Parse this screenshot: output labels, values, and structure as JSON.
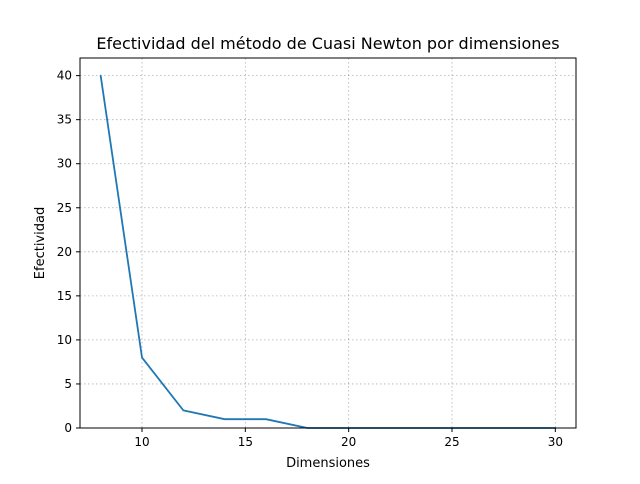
{
  "chart_data": {
    "type": "line",
    "title": "Efectividad del método de Cuasi Newton por dimensiones",
    "xlabel": "Dimensiones",
    "ylabel": "Efectividad",
    "xlim": [
      7,
      31
    ],
    "ylim": [
      0,
      42
    ],
    "x_ticks": [
      10,
      15,
      20,
      25,
      30
    ],
    "y_ticks": [
      0,
      5,
      10,
      15,
      20,
      25,
      30,
      35,
      40
    ],
    "grid": true,
    "legend": "none",
    "series": [
      {
        "color": "#1f77b4",
        "x": [
          8,
          10,
          12,
          14,
          16,
          18,
          20,
          22,
          24,
          26,
          28,
          30
        ],
        "y": [
          40,
          8,
          2,
          1,
          1,
          0,
          0,
          0,
          0,
          0,
          0,
          0
        ]
      }
    ]
  }
}
